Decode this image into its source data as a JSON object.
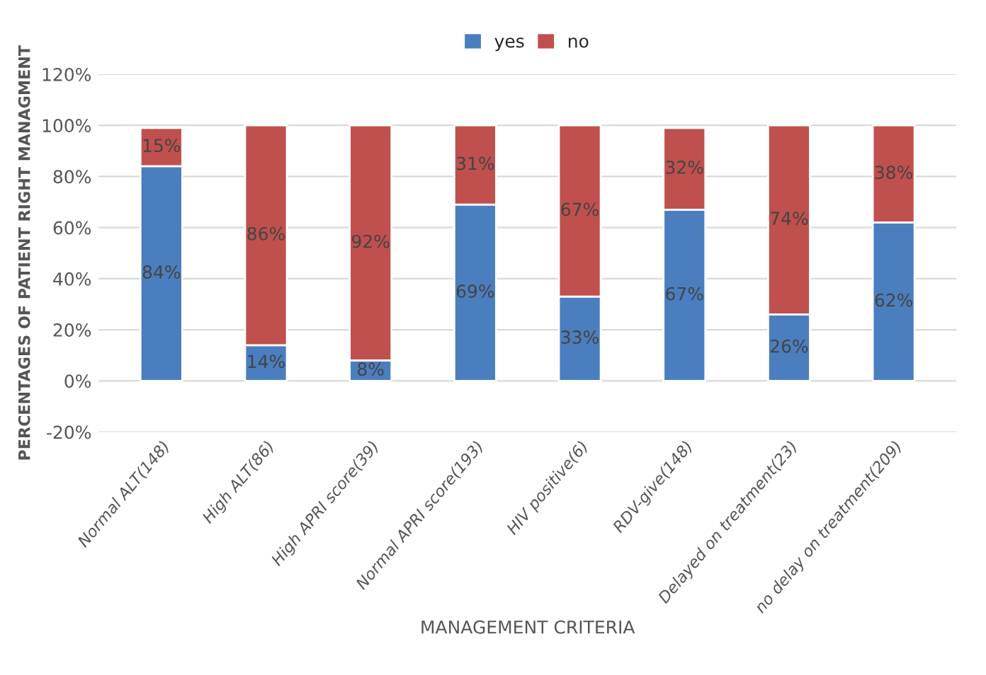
{
  "chart_data": {
    "type": "bar",
    "stacked": true,
    "xlabel": "MANAGEMENT CRITERIA",
    "ylabel": "PERCENTAGES OF PATIENT RIGHT MANAGMENT",
    "categories": [
      "Normal ALT(148)",
      "High ALT(86)",
      "High APRI score(39)",
      "Normal APRI score(193)",
      "HIV positive(6)",
      "RDV-give(148)",
      "Delayed on treatment(23)",
      "no delay on treatment(209)"
    ],
    "series": [
      {
        "name": "yes",
        "color": "#4a7ebf",
        "values": [
          84,
          14,
          8,
          69,
          33,
          67,
          26,
          62
        ],
        "value_labels": [
          "84%",
          "14%",
          "8%",
          "69%",
          "33%",
          "67%",
          "26%",
          "62%"
        ]
      },
      {
        "name": "no",
        "color": "#c0504d",
        "values": [
          15,
          86,
          92,
          31,
          67,
          32,
          74,
          38
        ],
        "value_labels": [
          "15%",
          "86%",
          "92%",
          "31%",
          "67%",
          "32%",
          "74%",
          "38%"
        ]
      }
    ],
    "ylim": [
      -20,
      120
    ],
    "yticks": [
      {
        "value": -20,
        "label": "-20%"
      },
      {
        "value": 0,
        "label": "0%"
      },
      {
        "value": 20,
        "label": "20%"
      },
      {
        "value": 40,
        "label": "40%"
      },
      {
        "value": 60,
        "label": "60%"
      },
      {
        "value": 80,
        "label": "80%"
      },
      {
        "value": 100,
        "label": "100%"
      },
      {
        "value": 120,
        "label": "120%"
      }
    ],
    "grid": "y",
    "legend": "top"
  }
}
